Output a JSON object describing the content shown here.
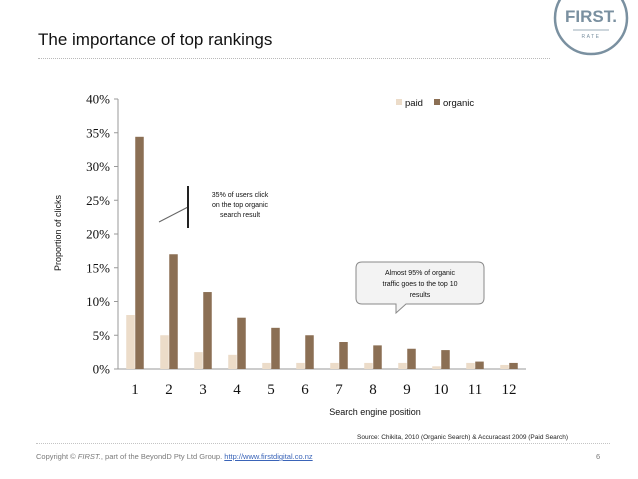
{
  "slide": {
    "title": "The importance of top rankings",
    "source": "Source: Chikita, 2010 (Organic Search) & Accuracast 2009 (Paid Search)",
    "footer_prefix": "Copyright © ",
    "footer_brand": "FIRST.",
    "footer_mid": ", part of the BeyondD Pty Ltd Group.",
    "footer_link": "http://www.firstdigital.co.nz",
    "page_number": "6",
    "logo": {
      "word": "FIRST.",
      "sub": "RATE"
    }
  },
  "colors": {
    "paid": "#ecdcc9",
    "organic": "#8b6f54",
    "axis": "#999999",
    "logo": "#7a90a0"
  },
  "chart_data": {
    "type": "bar",
    "categories": [
      "1",
      "2",
      "3",
      "4",
      "5",
      "6",
      "7",
      "8",
      "9",
      "10",
      "11",
      "12"
    ],
    "series": [
      {
        "name": "paid",
        "values": [
          8.0,
          5.0,
          2.5,
          2.1,
          0.9,
          0.9,
          0.9,
          0.9,
          0.9,
          0.4,
          0.9,
          0.6
        ]
      },
      {
        "name": "organic",
        "values": [
          34.4,
          17.0,
          11.4,
          7.6,
          6.1,
          5.0,
          4.0,
          3.5,
          3.0,
          2.8,
          1.1,
          0.9
        ]
      }
    ],
    "yticks": [
      "0%",
      "5%",
      "10%",
      "15%",
      "20%",
      "25%",
      "30%",
      "35%",
      "40%"
    ],
    "ylim": [
      0,
      40
    ],
    "xlabel": "Search engine position",
    "ylabel": "Proportion of clicks",
    "legend": "top-right",
    "annotations": [
      {
        "lines": [
          "35% of users click",
          "on the top organic",
          "search result"
        ]
      },
      {
        "lines": [
          "Almost 95% of organic",
          "traffic goes to the top 10",
          "results"
        ]
      }
    ]
  }
}
